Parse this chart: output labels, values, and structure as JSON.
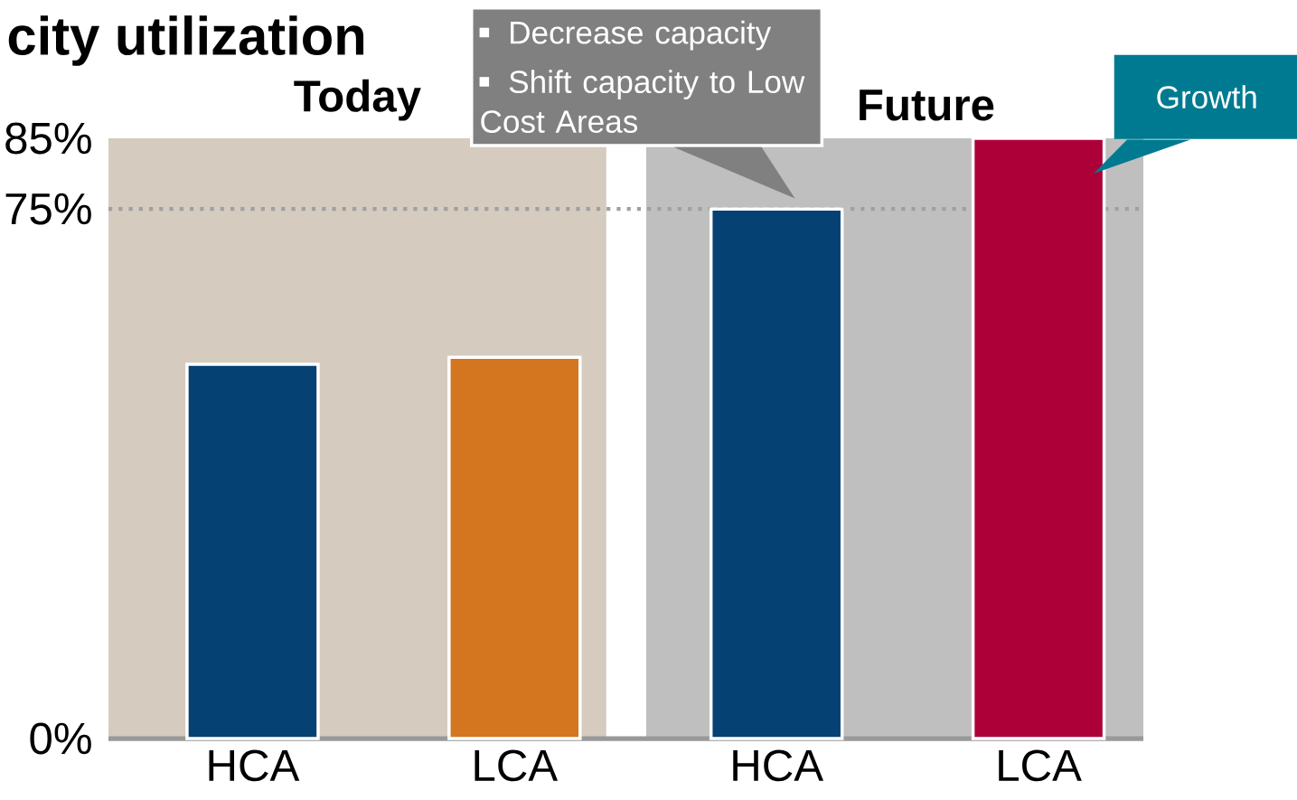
{
  "chart_data": {
    "type": "bar",
    "title": "city utilization",
    "categories": [
      "HCA",
      "LCA",
      "HCA",
      "LCA"
    ],
    "values": [
      53,
      54,
      75,
      85
    ],
    "colors": [
      "#054172",
      "#d3761f",
      "#054172",
      "#ad0039"
    ],
    "ylim": [
      0,
      85
    ],
    "yticks": [
      {
        "value": 0,
        "label": "0%"
      },
      {
        "value": 75,
        "label": "75%"
      },
      {
        "value": 85,
        "label": "85%"
      }
    ],
    "ref_lines": [
      {
        "axis": "y",
        "value": 75,
        "color": "#a0a0a0",
        "line_style": "dotted"
      }
    ],
    "annotations": [
      "Today",
      "Decrease capacity",
      "Shift capacity to Low Cost Areas",
      "Future",
      "Growth"
    ]
  }
}
